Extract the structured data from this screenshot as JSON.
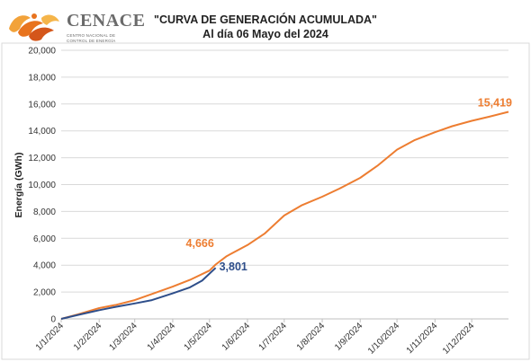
{
  "logo": {
    "name": "CENACE",
    "subtitle_line1": "CENTRO NACIONAL DE",
    "subtitle_line2": "CONTROL DE ENERGÍA"
  },
  "chart_data": {
    "type": "line",
    "title": "\"CURVA DE GENERACIÓN ACUMULADA\"",
    "subtitle": "Al día 06 Mayo del 2024",
    "xlabel": "",
    "ylabel": "Energía (GWh)",
    "ylim": [
      0,
      20000
    ],
    "yticks": [
      0,
      2000,
      4000,
      6000,
      8000,
      10000,
      12000,
      14000,
      16000,
      18000,
      20000
    ],
    "ytick_labels": [
      "0",
      "2,000",
      "4,000",
      "6,000",
      "8,000",
      "10,000",
      "12,000",
      "14,000",
      "16,000",
      "18,000",
      "20,000"
    ],
    "xtick_labels": [
      "1/1/2024",
      "1/2/2024",
      "1/3/2024",
      "1/4/2024",
      "1/5/2024",
      "1/6/2024",
      "1/7/2024",
      "1/8/2024",
      "1/9/2024",
      "1/10/2024",
      "1/11/2024",
      "1/12/2024"
    ],
    "xlim": [
      "2024-01-01",
      "2024-12-31"
    ],
    "grid": true,
    "series": [
      {
        "color": "#ed7d31",
        "points": [
          [
            "2024-01-01",
            0
          ],
          [
            "2024-01-15",
            350
          ],
          [
            "2024-02-01",
            800
          ],
          [
            "2024-02-15",
            1050
          ],
          [
            "2024-03-01",
            1400
          ],
          [
            "2024-03-15",
            1850
          ],
          [
            "2024-04-01",
            2400
          ],
          [
            "2024-04-15",
            2900
          ],
          [
            "2024-05-01",
            3600
          ],
          [
            "2024-05-06",
            4050
          ],
          [
            "2024-05-15",
            4666
          ],
          [
            "2024-06-01",
            5500
          ],
          [
            "2024-06-15",
            6350
          ],
          [
            "2024-07-01",
            7700
          ],
          [
            "2024-07-15",
            8450
          ],
          [
            "2024-08-01",
            9100
          ],
          [
            "2024-08-15",
            9700
          ],
          [
            "2024-09-01",
            10500
          ],
          [
            "2024-09-15",
            11400
          ],
          [
            "2024-10-01",
            12600
          ],
          [
            "2024-10-15",
            13300
          ],
          [
            "2024-11-01",
            13900
          ],
          [
            "2024-11-15",
            14350
          ],
          [
            "2024-12-01",
            14750
          ],
          [
            "2024-12-15",
            15050
          ],
          [
            "2024-12-31",
            15419
          ]
        ]
      },
      {
        "color": "#2e4e8a",
        "points": [
          [
            "2024-01-01",
            0
          ],
          [
            "2024-01-15",
            300
          ],
          [
            "2024-02-01",
            650
          ],
          [
            "2024-02-15",
            900
          ],
          [
            "2024-03-01",
            1150
          ],
          [
            "2024-03-15",
            1400
          ],
          [
            "2024-04-01",
            1900
          ],
          [
            "2024-04-15",
            2350
          ],
          [
            "2024-04-25",
            2850
          ],
          [
            "2024-05-06",
            3801
          ]
        ]
      }
    ],
    "annotations": [
      {
        "text": "4,666",
        "date": "2024-05-15",
        "value": 4666,
        "color": "#ed7d31"
      },
      {
        "text": "3,801",
        "date": "2024-05-06",
        "value": 3801,
        "color": "#2e4e8a"
      },
      {
        "text": "15,419",
        "date": "2024-12-31",
        "value": 15419,
        "color": "#ed7d31"
      }
    ]
  }
}
